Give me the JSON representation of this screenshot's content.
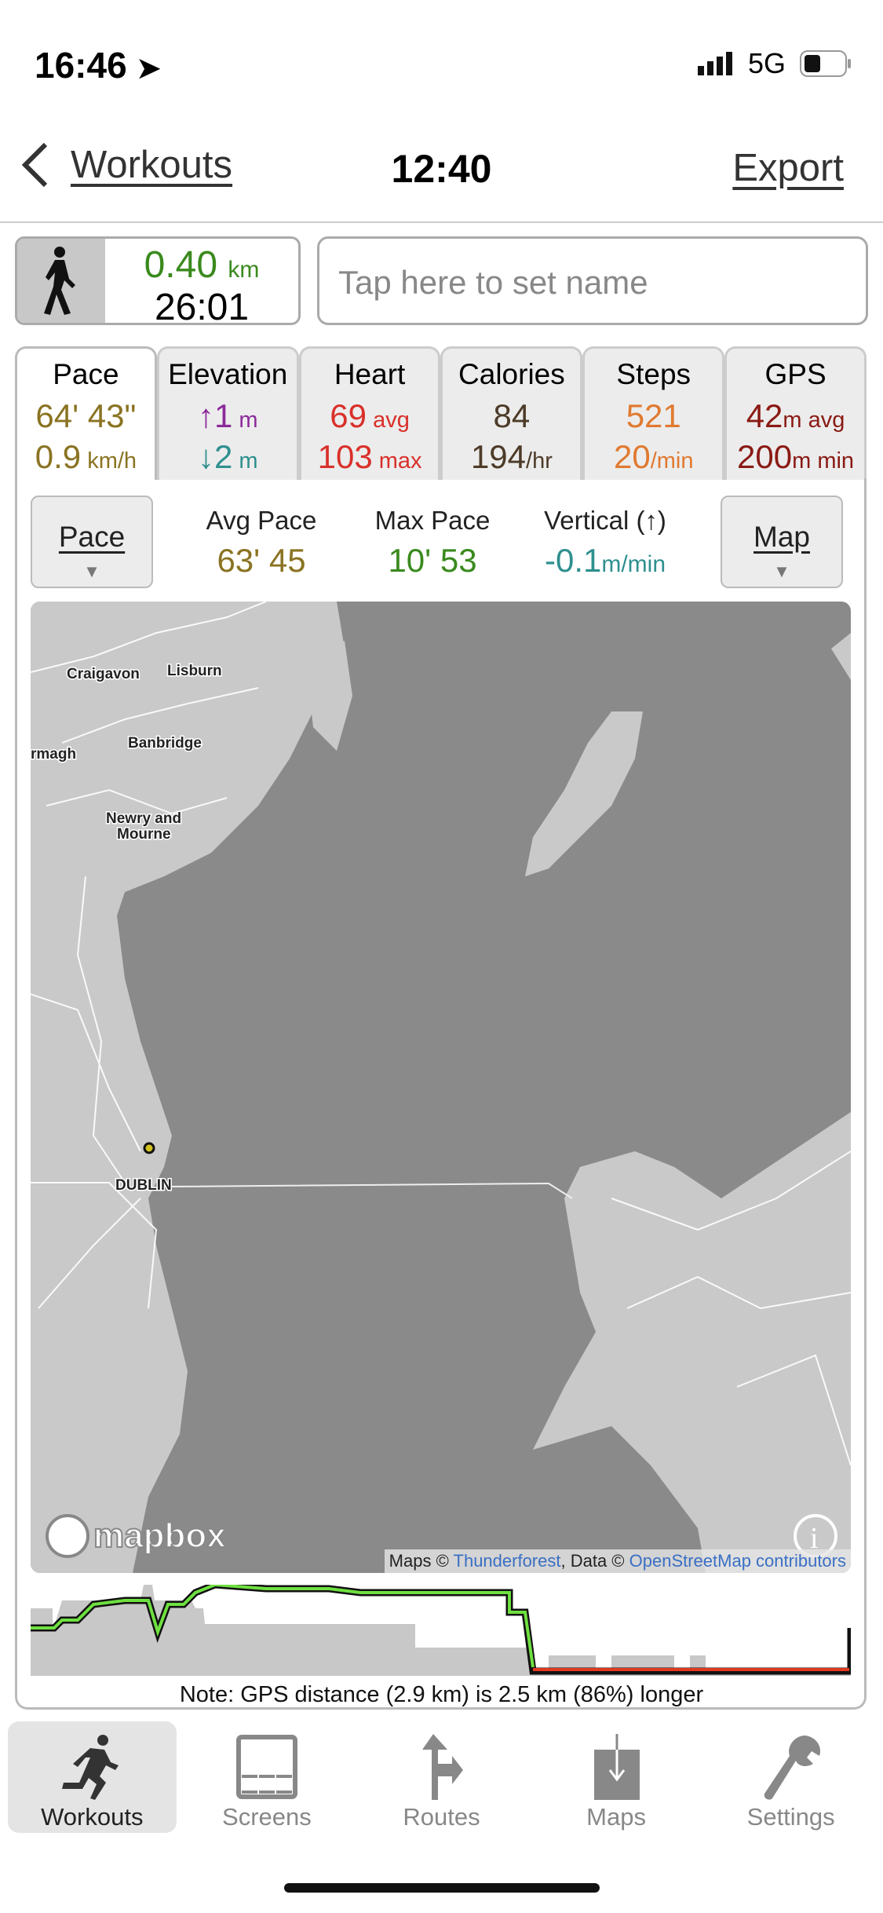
{
  "status_bar": {
    "time": "16:46",
    "network": "5G"
  },
  "nav": {
    "back_label": "Workouts",
    "title": "12:40",
    "export_label": "Export"
  },
  "summary": {
    "distance": "0.40",
    "distance_unit": "km",
    "duration": "26:01",
    "activity_icon": "walking-icon"
  },
  "name_field": {
    "placeholder": "Tap here to set name",
    "value": ""
  },
  "tabs": [
    {
      "title": "Pace",
      "v1": "64' 43\"",
      "v1u": "",
      "v2": "0.9",
      "v2u": " km/h",
      "c1": "#8a7322",
      "c2": "#8a7322",
      "active": true
    },
    {
      "title": "Elevation",
      "v1": "↑1",
      "v1u": " m",
      "v2": "↓2",
      "v2u": " m",
      "c1": "#8b2a9a",
      "c2": "#2f8f8f"
    },
    {
      "title": "Heart",
      "v1": "69",
      "v1u": " avg",
      "v2": "103",
      "v2u": " max",
      "c1": "#d9302a",
      "c2": "#d9302a"
    },
    {
      "title": "Calories",
      "v1": "84",
      "v1u": "",
      "v2": "194",
      "v2u": "/hr",
      "c1": "#4d3b28",
      "c2": "#4d3b28"
    },
    {
      "title": "Steps",
      "v1": "521",
      "v1u": "",
      "v2": "20",
      "v2u": "/min",
      "c1": "#e07a30",
      "c2": "#e07a30"
    },
    {
      "title": "GPS",
      "v1": "42",
      "v1u": "m avg",
      "v2": "200",
      "v2u": "m min",
      "c1": "#8a1a14",
      "c2": "#8a1a14"
    }
  ],
  "controls": {
    "left_button": "Pace",
    "right_button": "Map",
    "stats": [
      {
        "title": "Avg Pace",
        "value": "63' 45",
        "unit": "",
        "color": "#8a7322"
      },
      {
        "title": "Max Pace",
        "value": "10' 53",
        "unit": "",
        "color": "#3a8a1e"
      },
      {
        "title": "Vertical (↑)",
        "value": "-0.1",
        "unit": "m/min",
        "color": "#2f8f8f"
      }
    ]
  },
  "map": {
    "labels": [
      "Craigavon",
      "Lisburn",
      "Banbridge",
      "rmagh",
      "Newry and",
      "Mourne",
      "DUBLIN"
    ],
    "logo": "mapbox",
    "attribution": {
      "prefix": "Maps © ",
      "thunderforest": "Thunderforest",
      "mid": ", Data © ",
      "osm": "OpenStreetMap contributors"
    },
    "sea_color": "#8a8a8b",
    "land_color": "#c9c9c9"
  },
  "note": "Note: GPS distance (2.9 km) is 2.5 km (86%) longer",
  "tabbar": [
    {
      "label": "Workouts",
      "icon": "running-icon",
      "active": true
    },
    {
      "label": "Screens",
      "icon": "screens-icon"
    },
    {
      "label": "Routes",
      "icon": "routes-icon"
    },
    {
      "label": "Maps",
      "icon": "maps-download-icon"
    },
    {
      "label": "Settings",
      "icon": "wrench-icon"
    }
  ]
}
